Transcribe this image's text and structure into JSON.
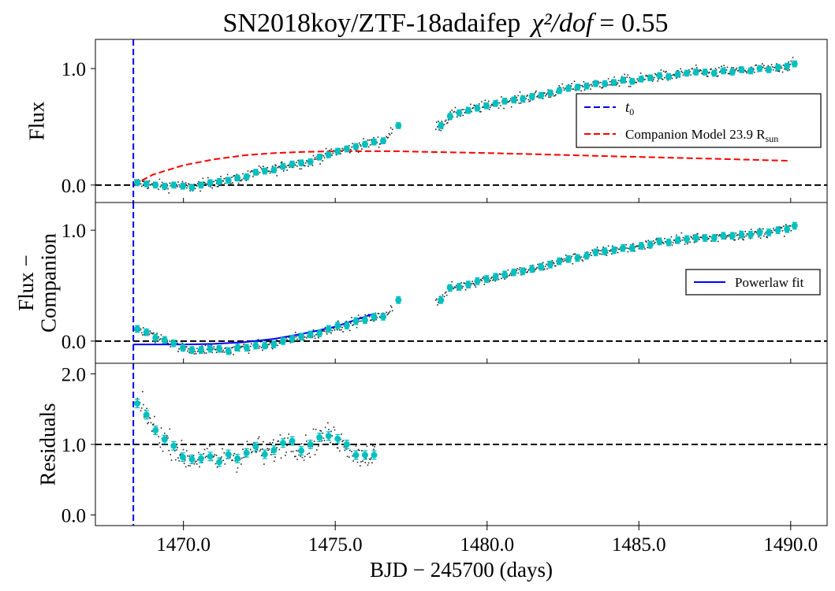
{
  "chart_data": {
    "type": "scatter",
    "title": "SN2018koy/ZTF-18adaifep",
    "title_stat_label": "χ²/dof",
    "title_stat_value": "= 0.55",
    "xlabel": "BJD − 245700 (days)",
    "xlim": [
      1467.1,
      1491.2
    ],
    "xticks": [
      1470.0,
      1475.0,
      1480.0,
      1485.0,
      1490.0
    ],
    "x_tick_labels": [
      "1470.0",
      "1475.0",
      "1480.0",
      "1485.0",
      "1490.0"
    ],
    "t0": 1468.35,
    "colors": {
      "t0_line": "#0000ee",
      "companion_model": "#ff0000",
      "powerlaw": "#0000ff",
      "binned": "#00bfbf",
      "raw": "#222222",
      "zero_line": "#000000"
    },
    "panels": [
      {
        "id": "flux",
        "ylabel": [
          "Flux"
        ],
        "ylim": [
          -0.15,
          1.25
        ],
        "yticks": [
          0.0,
          1.0
        ],
        "y_tick_labels": [
          "0.0",
          "1.0"
        ],
        "hline": 0.0,
        "legend": {
          "position": "center-right",
          "entries": [
            {
              "label": "t",
              "label_sub": "0",
              "style": "dashed",
              "color": "#0000ee"
            },
            {
              "label": "Companion Model  23.9  R",
              "label_sub": "sun",
              "style": "dashed",
              "color": "#ff0000"
            }
          ]
        },
        "binned": {
          "x": [
            1468.48,
            1468.78,
            1469.08,
            1469.38,
            1469.68,
            1469.98,
            1470.28,
            1470.58,
            1470.88,
            1471.18,
            1471.48,
            1471.78,
            1472.08,
            1472.38,
            1472.68,
            1472.98,
            1473.28,
            1473.58,
            1473.88,
            1474.18,
            1474.48,
            1474.78,
            1475.08,
            1475.38,
            1475.68,
            1475.98,
            1476.28,
            1476.58,
            1477.08,
            1478.48,
            1478.78,
            1479.08,
            1479.38,
            1479.68,
            1479.98,
            1480.28,
            1480.58,
            1480.88,
            1481.18,
            1481.48,
            1481.78,
            1482.08,
            1482.38,
            1482.68,
            1482.98,
            1483.28,
            1483.58,
            1483.88,
            1484.18,
            1484.48,
            1484.78,
            1485.08,
            1485.38,
            1485.68,
            1485.98,
            1486.28,
            1486.58,
            1486.88,
            1487.18,
            1487.48,
            1487.78,
            1488.08,
            1488.38,
            1488.68,
            1488.98,
            1489.28,
            1489.58,
            1489.88,
            1490.13
          ],
          "y": [
            0.02,
            0.01,
            0.0,
            -0.01,
            0.0,
            -0.01,
            -0.02,
            0.0,
            0.02,
            0.03,
            0.04,
            0.06,
            0.07,
            0.11,
            0.12,
            0.13,
            0.16,
            0.18,
            0.19,
            0.2,
            0.24,
            0.26,
            0.29,
            0.31,
            0.33,
            0.35,
            0.37,
            0.38,
            0.51,
            0.51,
            0.59,
            0.62,
            0.64,
            0.66,
            0.68,
            0.7,
            0.72,
            0.73,
            0.74,
            0.76,
            0.77,
            0.79,
            0.81,
            0.83,
            0.84,
            0.85,
            0.87,
            0.87,
            0.88,
            0.9,
            0.89,
            0.91,
            0.92,
            0.94,
            0.93,
            0.95,
            0.96,
            0.97,
            0.97,
            0.96,
            0.98,
            0.97,
            0.99,
            0.98,
            1.0,
            0.99,
            1.01,
            1.02,
            1.04
          ],
          "err": 0.025
        },
        "model_curve": {
          "x": [
            1468.35,
            1469.0,
            1470.0,
            1471.0,
            1472.0,
            1473.0,
            1474.0,
            1475.0,
            1476.0,
            1477.0,
            1478.0,
            1480.0,
            1482.0,
            1484.0,
            1486.0,
            1488.0,
            1490.0
          ],
          "y": [
            0.0,
            0.09,
            0.17,
            0.22,
            0.255,
            0.275,
            0.285,
            0.29,
            0.29,
            0.29,
            0.285,
            0.275,
            0.262,
            0.248,
            0.235,
            0.222,
            0.208
          ]
        }
      },
      {
        "id": "flux-companion",
        "ylabel": [
          "Flux −",
          "Companion"
        ],
        "ylim": [
          -0.2,
          1.25
        ],
        "yticks": [
          0.0,
          1.0
        ],
        "y_tick_labels": [
          "0.0",
          "1.0"
        ],
        "hline": 0.0,
        "legend": {
          "position": "center-right",
          "entries": [
            {
              "label": "Powerlaw fit",
              "style": "solid",
              "color": "#0000ff"
            }
          ]
        },
        "binned": {
          "x": [
            1468.48,
            1468.78,
            1469.08,
            1469.38,
            1469.68,
            1469.98,
            1470.28,
            1470.58,
            1470.88,
            1471.18,
            1471.48,
            1471.78,
            1472.08,
            1472.38,
            1472.68,
            1472.98,
            1473.28,
            1473.58,
            1473.88,
            1474.18,
            1474.48,
            1474.78,
            1475.08,
            1475.38,
            1475.68,
            1475.98,
            1476.28,
            1476.58,
            1477.08,
            1478.48,
            1478.78,
            1479.08,
            1479.38,
            1479.68,
            1479.98,
            1480.28,
            1480.58,
            1480.88,
            1481.18,
            1481.48,
            1481.78,
            1482.08,
            1482.38,
            1482.68,
            1482.98,
            1483.28,
            1483.58,
            1483.88,
            1484.18,
            1484.48,
            1484.78,
            1485.08,
            1485.38,
            1485.68,
            1485.98,
            1486.28,
            1486.58,
            1486.88,
            1487.18,
            1487.48,
            1487.78,
            1488.08,
            1488.38,
            1488.68,
            1488.98,
            1489.28,
            1489.58,
            1489.88,
            1490.13
          ],
          "y": [
            0.11,
            0.08,
            0.03,
            0.01,
            -0.02,
            -0.06,
            -0.08,
            -0.08,
            -0.07,
            -0.07,
            -0.09,
            -0.06,
            -0.06,
            -0.04,
            -0.04,
            -0.03,
            0.0,
            0.02,
            0.04,
            0.06,
            0.07,
            0.11,
            0.14,
            0.14,
            0.18,
            0.19,
            0.22,
            0.22,
            0.37,
            0.37,
            0.48,
            0.49,
            0.51,
            0.54,
            0.56,
            0.58,
            0.6,
            0.62,
            0.63,
            0.65,
            0.67,
            0.69,
            0.72,
            0.74,
            0.75,
            0.77,
            0.8,
            0.81,
            0.82,
            0.84,
            0.84,
            0.86,
            0.87,
            0.9,
            0.89,
            0.91,
            0.92,
            0.93,
            0.93,
            0.93,
            0.95,
            0.95,
            0.96,
            0.96,
            0.98,
            0.98,
            1.0,
            1.01,
            1.04
          ],
          "err": 0.03
        },
        "fit_curve": {
          "x": [
            1468.35,
            1469.0,
            1470.0,
            1471.0,
            1472.0,
            1473.0,
            1474.0,
            1475.0,
            1476.2
          ],
          "y": [
            -0.03,
            -0.03,
            -0.03,
            -0.025,
            -0.01,
            0.02,
            0.07,
            0.13,
            0.24
          ]
        }
      },
      {
        "id": "residuals",
        "ylabel": [
          "Residuals"
        ],
        "ylim": [
          -0.15,
          2.15
        ],
        "yticks": [
          0.0,
          1.0,
          2.0
        ],
        "y_tick_labels": [
          "0.0",
          "1.0",
          "2.0"
        ],
        "hline": 1.0,
        "binned": {
          "x": [
            1468.48,
            1468.78,
            1469.08,
            1469.38,
            1469.68,
            1469.98,
            1470.28,
            1470.58,
            1470.88,
            1471.18,
            1471.48,
            1471.78,
            1472.08,
            1472.38,
            1472.68,
            1472.98,
            1473.28,
            1473.58,
            1473.88,
            1474.18,
            1474.48,
            1474.78,
            1475.08,
            1475.38,
            1475.68,
            1475.98,
            1476.28
          ],
          "y": [
            1.58,
            1.42,
            1.2,
            1.07,
            0.98,
            0.82,
            0.79,
            0.8,
            0.83,
            0.75,
            0.86,
            0.8,
            0.88,
            0.97,
            0.86,
            0.92,
            1.02,
            1.05,
            0.91,
            1.0,
            1.1,
            1.12,
            1.08,
            1.0,
            0.85,
            0.85,
            0.85
          ],
          "err": 0.06
        }
      }
    ]
  }
}
